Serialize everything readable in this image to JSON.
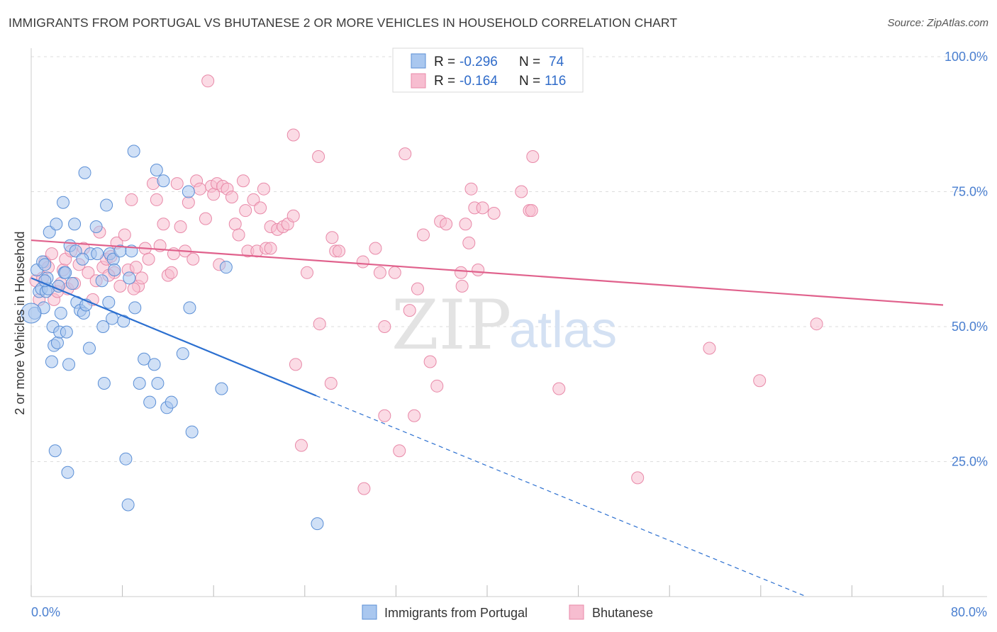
{
  "title": "IMMIGRANTS FROM PORTUGAL VS BHUTANESE 2 OR MORE VEHICLES IN HOUSEHOLD CORRELATION CHART",
  "source": "Source: ZipAtlas.com",
  "watermark": {
    "zip": "ZIP",
    "atlas": "atlas"
  },
  "colors": {
    "portugal_fill": "#a9c7ef",
    "portugal_stroke": "#5b8fd6",
    "portugal_line": "#2b6fd0",
    "bhutanese_fill": "#f7bdd0",
    "bhutanese_stroke": "#e889a8",
    "bhutanese_line": "#e0618c",
    "grid": "#dddddd",
    "axis_text": "#4a7fd0"
  },
  "legend": {
    "rows": [
      {
        "r_label": "R =",
        "r_value": "-0.296",
        "n_label": "N =",
        "n_value": "74"
      },
      {
        "r_label": "R =",
        "r_value": "-0.164",
        "n_label": "N =",
        "n_value": "116"
      }
    ]
  },
  "chart_data": {
    "type": "scatter",
    "title": "IMMIGRANTS FROM PORTUGAL VS BHUTANESE 2 OR MORE VEHICLES IN HOUSEHOLD CORRELATION CHART",
    "xlabel": "",
    "ylabel": "2 or more Vehicles in Household",
    "xlim": [
      0,
      80
    ],
    "ylim": [
      0,
      100
    ],
    "x_tick_labels": [
      "0.0%",
      "80.0%"
    ],
    "y_ticks": [
      25,
      50,
      75,
      100
    ],
    "y_tick_labels": [
      "25.0%",
      "50.0%",
      "75.0%",
      "100.0%"
    ],
    "grid": true,
    "legend_position": "top-center",
    "series": [
      {
        "name": "Immigrants from Portugal",
        "r": -0.296,
        "n": 74,
        "trend": {
          "x0": 0.0,
          "y0": 59.0,
          "x_solid_end": 25.0,
          "x_dash_end": 68.0,
          "slope": -0.872
        },
        "points": [
          [
            0.3,
            52.5
          ],
          [
            0.5,
            60.5
          ],
          [
            0.7,
            56.5
          ],
          [
            0.9,
            57.0
          ],
          [
            1.0,
            62.0
          ],
          [
            1.1,
            53.5
          ],
          [
            1.2,
            61.5
          ],
          [
            1.3,
            56.5
          ],
          [
            1.4,
            59.0
          ],
          [
            1.5,
            57.0
          ],
          [
            1.6,
            67.5
          ],
          [
            1.8,
            43.5
          ],
          [
            1.9,
            50.0
          ],
          [
            2.0,
            46.5
          ],
          [
            2.1,
            27.0
          ],
          [
            2.2,
            69.0
          ],
          [
            2.3,
            47.0
          ],
          [
            2.5,
            49.0
          ],
          [
            2.6,
            52.5
          ],
          [
            2.8,
            73.0
          ],
          [
            2.9,
            60.0
          ],
          [
            3.1,
            49.0
          ],
          [
            3.2,
            23.0
          ],
          [
            3.3,
            43.0
          ],
          [
            3.4,
            65.0
          ],
          [
            3.6,
            58.0
          ],
          [
            3.8,
            69.0
          ],
          [
            3.9,
            64.0
          ],
          [
            4.0,
            54.5
          ],
          [
            4.3,
            53.0
          ],
          [
            4.6,
            52.5
          ],
          [
            4.7,
            78.5
          ],
          [
            4.8,
            54.0
          ],
          [
            5.1,
            46.0
          ],
          [
            5.2,
            63.5
          ],
          [
            5.7,
            68.5
          ],
          [
            5.8,
            63.5
          ],
          [
            6.2,
            58.5
          ],
          [
            6.3,
            50.0
          ],
          [
            6.4,
            39.5
          ],
          [
            6.6,
            72.5
          ],
          [
            6.8,
            54.5
          ],
          [
            6.9,
            63.5
          ],
          [
            7.1,
            51.5
          ],
          [
            7.2,
            62.5
          ],
          [
            7.3,
            60.5
          ],
          [
            7.8,
            64.0
          ],
          [
            8.1,
            51.0
          ],
          [
            8.3,
            25.5
          ],
          [
            8.5,
            17.0
          ],
          [
            8.6,
            59.0
          ],
          [
            8.8,
            64.0
          ],
          [
            9.0,
            82.5
          ],
          [
            9.1,
            53.5
          ],
          [
            9.5,
            39.5
          ],
          [
            9.9,
            44.0
          ],
          [
            10.4,
            36.0
          ],
          [
            10.8,
            43.0
          ],
          [
            11.0,
            79.0
          ],
          [
            11.1,
            39.5
          ],
          [
            11.6,
            77.0
          ],
          [
            11.9,
            35.0
          ],
          [
            12.3,
            36.0
          ],
          [
            13.3,
            45.0
          ],
          [
            13.8,
            75.0
          ],
          [
            13.9,
            53.5
          ],
          [
            14.1,
            30.5
          ],
          [
            16.7,
            38.5
          ],
          [
            17.1,
            61.0
          ],
          [
            25.1,
            13.5
          ],
          [
            1.2,
            58.5
          ],
          [
            2.4,
            57.5
          ],
          [
            3.0,
            60.0
          ],
          [
            4.5,
            62.5
          ]
        ]
      },
      {
        "name": "Bhutanese",
        "r": -0.164,
        "n": 116,
        "trend": {
          "x0": 0.0,
          "y0": 66.0,
          "x_solid_end": 80.0,
          "y_end": 54.0
        },
        "points": [
          [
            0.4,
            58.5
          ],
          [
            0.7,
            55.0
          ],
          [
            1.0,
            59.0
          ],
          [
            1.2,
            62.0
          ],
          [
            1.5,
            61.0
          ],
          [
            1.8,
            63.5
          ],
          [
            2.0,
            55.0
          ],
          [
            2.3,
            56.5
          ],
          [
            2.6,
            58.0
          ],
          [
            2.8,
            60.5
          ],
          [
            3.0,
            62.5
          ],
          [
            3.2,
            57.0
          ],
          [
            3.5,
            64.0
          ],
          [
            3.8,
            58.0
          ],
          [
            4.2,
            61.5
          ],
          [
            4.6,
            64.5
          ],
          [
            5.0,
            60.0
          ],
          [
            5.4,
            55.0
          ],
          [
            5.7,
            58.5
          ],
          [
            6.0,
            67.5
          ],
          [
            6.3,
            61.0
          ],
          [
            6.6,
            62.5
          ],
          [
            7.0,
            63.0
          ],
          [
            7.3,
            60.0
          ],
          [
            7.5,
            65.5
          ],
          [
            7.8,
            57.5
          ],
          [
            8.2,
            67.0
          ],
          [
            8.5,
            60.5
          ],
          [
            8.8,
            73.5
          ],
          [
            9.2,
            61.0
          ],
          [
            9.4,
            57.5
          ],
          [
            9.7,
            59.0
          ],
          [
            10.0,
            64.5
          ],
          [
            10.3,
            62.5
          ],
          [
            10.7,
            76.5
          ],
          [
            11.0,
            73.5
          ],
          [
            11.3,
            65.0
          ],
          [
            11.6,
            69.0
          ],
          [
            12.0,
            59.5
          ],
          [
            12.3,
            60.0
          ],
          [
            12.5,
            63.5
          ],
          [
            12.8,
            76.5
          ],
          [
            13.1,
            68.5
          ],
          [
            13.5,
            64.0
          ],
          [
            13.8,
            73.0
          ],
          [
            14.2,
            62.5
          ],
          [
            14.5,
            77.0
          ],
          [
            14.8,
            75.5
          ],
          [
            15.3,
            70.0
          ],
          [
            15.5,
            95.5
          ],
          [
            15.8,
            76.0
          ],
          [
            16.0,
            74.5
          ],
          [
            16.3,
            76.5
          ],
          [
            16.5,
            61.5
          ],
          [
            16.8,
            76.0
          ],
          [
            17.2,
            75.5
          ],
          [
            17.6,
            74.0
          ],
          [
            17.9,
            69.0
          ],
          [
            18.2,
            67.0
          ],
          [
            18.6,
            77.0
          ],
          [
            18.8,
            71.5
          ],
          [
            19.0,
            64.0
          ],
          [
            19.5,
            73.5
          ],
          [
            19.8,
            64.0
          ],
          [
            20.1,
            72.0
          ],
          [
            20.4,
            75.5
          ],
          [
            20.6,
            64.5
          ],
          [
            21.0,
            68.5
          ],
          [
            21.6,
            68.0
          ],
          [
            22.1,
            68.5
          ],
          [
            22.5,
            69.0
          ],
          [
            23.0,
            70.5
          ],
          [
            23.0,
            85.5
          ],
          [
            23.2,
            43.0
          ],
          [
            23.7,
            28.0
          ],
          [
            24.2,
            60.0
          ],
          [
            25.2,
            81.5
          ],
          [
            25.3,
            50.5
          ],
          [
            26.3,
            39.5
          ],
          [
            26.4,
            66.5
          ],
          [
            26.7,
            64.0
          ],
          [
            27.0,
            64.0
          ],
          [
            29.1,
            62.0
          ],
          [
            29.2,
            20.0
          ],
          [
            30.2,
            64.5
          ],
          [
            30.6,
            60.0
          ],
          [
            31.0,
            33.5
          ],
          [
            31.0,
            50.0
          ],
          [
            31.9,
            60.0
          ],
          [
            32.3,
            27.0
          ],
          [
            32.8,
            82.0
          ],
          [
            33.2,
            53.0
          ],
          [
            33.6,
            33.5
          ],
          [
            33.9,
            57.0
          ],
          [
            34.4,
            67.0
          ],
          [
            35.0,
            43.5
          ],
          [
            35.6,
            39.0
          ],
          [
            35.9,
            69.5
          ],
          [
            36.4,
            69.0
          ],
          [
            37.7,
            60.0
          ],
          [
            37.8,
            57.5
          ],
          [
            38.1,
            69.0
          ],
          [
            38.4,
            65.5
          ],
          [
            38.6,
            75.5
          ],
          [
            38.9,
            72.0
          ],
          [
            39.2,
            60.5
          ],
          [
            39.6,
            72.0
          ],
          [
            40.6,
            71.0
          ],
          [
            43.0,
            75.0
          ],
          [
            43.7,
            71.5
          ],
          [
            43.9,
            71.5
          ],
          [
            44.0,
            81.5
          ],
          [
            46.3,
            38.5
          ],
          [
            53.2,
            22.0
          ],
          [
            59.5,
            46.0
          ],
          [
            63.9,
            40.0
          ],
          [
            68.9,
            50.5
          ],
          [
            6.8,
            59.5
          ],
          [
            9.0,
            57.0
          ],
          [
            21.0,
            64.5
          ]
        ]
      }
    ]
  },
  "bottom_legend": [
    "Immigrants from Portugal",
    "Bhutanese"
  ]
}
